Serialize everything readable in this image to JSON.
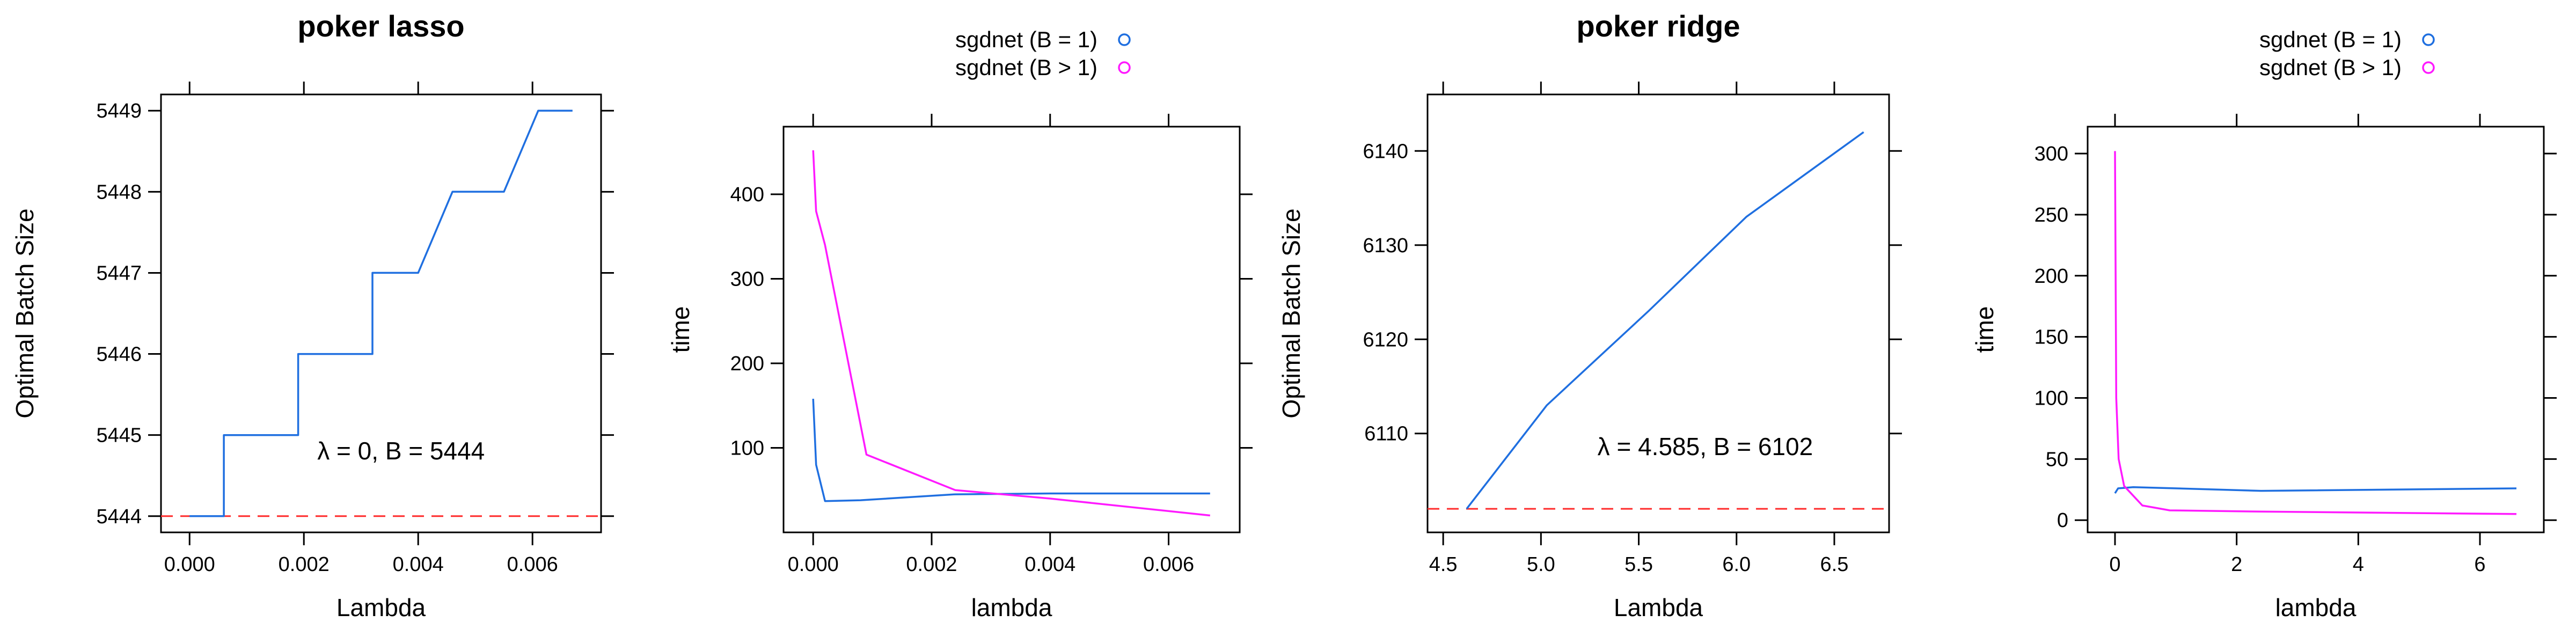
{
  "chart_data": [
    {
      "type": "line",
      "title": "poker lasso",
      "xlabel": "Lambda",
      "ylabel": "Optimal Batch Size",
      "xlim": [
        -0.0005,
        0.0072
      ],
      "ylim": [
        5443.8,
        5449.2
      ],
      "xticks": [
        "0.000",
        "0.002",
        "0.004",
        "0.006"
      ],
      "xtick_values": [
        0.0,
        0.002,
        0.004,
        0.006
      ],
      "yticks": [
        "5444",
        "5445",
        "5446",
        "5447",
        "5448",
        "5449"
      ],
      "ytick_values": [
        5444,
        5445,
        5446,
        5447,
        5448,
        5449
      ],
      "series": [
        {
          "color": "#1f6fe0",
          "x": [
            0,
            0.0006,
            0.0006,
            0.0019,
            0.0019,
            0.0032,
            0.0032,
            0.0035,
            0.0035,
            0.004,
            0.004,
            0.0046,
            0.0046,
            0.0055,
            0.0055,
            0.0061,
            0.0061,
            0.0067
          ],
          "y": [
            5444,
            5444,
            5445,
            5445,
            5446,
            5446,
            5447,
            5447,
            5447,
            5447,
            5447,
            5448,
            5448,
            5448,
            5448,
            5449,
            5449,
            5449
          ]
        }
      ],
      "reference_line": {
        "y": 5444,
        "color": "#ff2a2a",
        "style": "dashed"
      },
      "annotation": {
        "text": "λ = 0, B = 5444",
        "x": 0.0037,
        "y": 5444.7
      }
    },
    {
      "type": "line",
      "title": "",
      "xlabel": "lambda",
      "ylabel": "time",
      "xlim": [
        -0.0005,
        0.0072
      ],
      "ylim": [
        0,
        480
      ],
      "xticks": [
        "0.000",
        "0.002",
        "0.004",
        "0.006"
      ],
      "xtick_values": [
        0.0,
        0.002,
        0.004,
        0.006
      ],
      "yticks": [
        "100",
        "200",
        "300",
        "400"
      ],
      "ytick_values": [
        100,
        200,
        300,
        400
      ],
      "legend": {
        "position": "top",
        "entries": [
          "sgdnet (B = 1)",
          "sgdnet (B > 1)"
        ]
      },
      "series": [
        {
          "name": "sgdnet (B = 1)",
          "color": "#1f6fe0",
          "x": [
            0,
            5e-05,
            0.0002,
            0.0008,
            0.0024,
            0.004,
            0.0067
          ],
          "y": [
            158,
            80,
            37,
            38,
            45,
            46,
            46
          ]
        },
        {
          "name": "sgdnet (B > 1)",
          "color": "#ff1aff",
          "x": [
            0,
            5e-05,
            0.0002,
            0.0009,
            0.0024,
            0.004,
            0.0067
          ],
          "y": [
            452,
            380,
            340,
            92,
            50,
            40,
            20
          ]
        }
      ]
    },
    {
      "type": "line",
      "title": "poker ridge",
      "xlabel": "Lambda",
      "ylabel": "Optimal Batch Size",
      "xlim": [
        4.42,
        6.78
      ],
      "ylim": [
        6099.5,
        6146
      ],
      "xticks": [
        "4.5",
        "5.0",
        "5.5",
        "6.0",
        "6.5"
      ],
      "xtick_values": [
        4.5,
        5.0,
        5.5,
        6.0,
        6.5
      ],
      "yticks": [
        "6110",
        "6120",
        "6130",
        "6140"
      ],
      "ytick_values": [
        6110,
        6120,
        6130,
        6140
      ],
      "series": [
        {
          "color": "#1f6fe0",
          "x": [
            4.62,
            5.03,
            5.55,
            6.05,
            6.65
          ],
          "y": [
            6102,
            6113,
            6123,
            6133,
            6142
          ]
        }
      ],
      "reference_line": {
        "y": 6102,
        "color": "#ff2a2a",
        "style": "dashed"
      },
      "annotation": {
        "text": "λ = 4.585, B = 6102",
        "x": 5.84,
        "y": 6107.7
      }
    },
    {
      "type": "line",
      "title": "",
      "xlabel": "lambda",
      "ylabel": "time",
      "xlim": [
        -0.45,
        7.05
      ],
      "ylim": [
        -10,
        322
      ],
      "xticks": [
        "0",
        "2",
        "4",
        "6"
      ],
      "xtick_values": [
        0,
        2,
        4,
        6
      ],
      "yticks": [
        "0",
        "50",
        "100",
        "150",
        "200",
        "250",
        "300"
      ],
      "ytick_values": [
        0,
        50,
        100,
        150,
        200,
        250,
        300
      ],
      "legend": {
        "position": "top",
        "entries": [
          "sgdnet (B = 1)",
          "sgdnet (B > 1)"
        ]
      },
      "series": [
        {
          "name": "sgdnet (B = 1)",
          "color": "#1f6fe0",
          "x": [
            0,
            0.05,
            0.3,
            2.4,
            6.6
          ],
          "y": [
            22,
            26,
            27,
            24,
            26
          ]
        },
        {
          "name": "sgdnet (B > 1)",
          "color": "#ff1aff",
          "x": [
            0,
            0.02,
            0.06,
            0.15,
            0.45,
            0.9,
            2.4,
            6.6
          ],
          "y": [
            302,
            100,
            50,
            28,
            12,
            8,
            7,
            5
          ]
        }
      ]
    }
  ]
}
